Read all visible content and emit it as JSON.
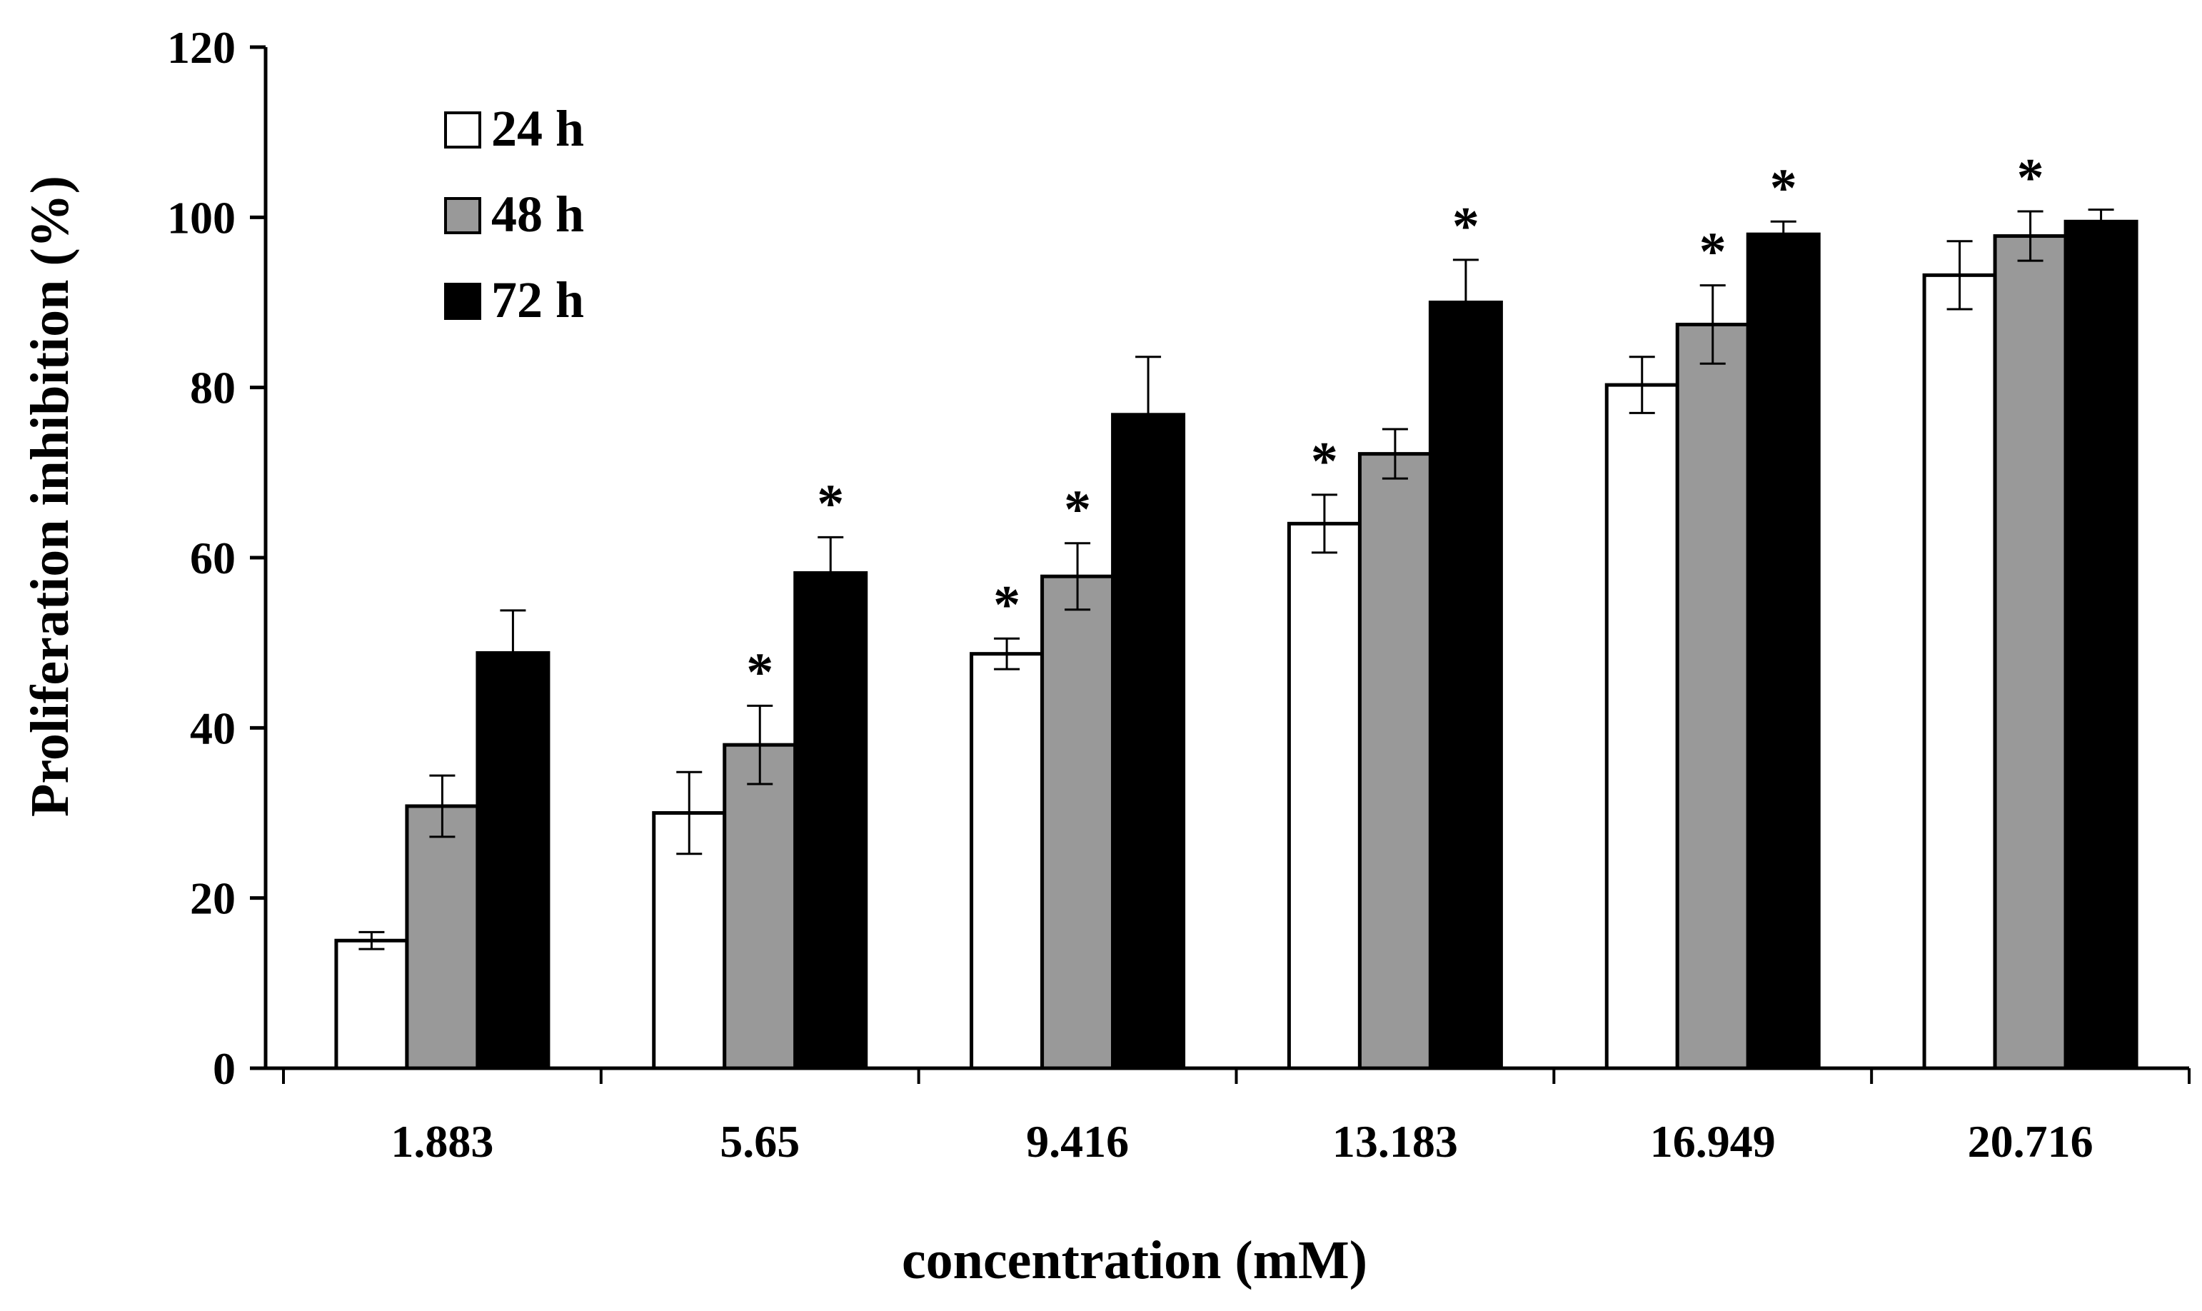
{
  "chart_data": {
    "type": "bar",
    "title": "",
    "xlabel": "concentration (mM)",
    "ylabel": "Proliferation inhibition (%)",
    "ylim": [
      0,
      120
    ],
    "yticks": [
      "0",
      "20",
      "40",
      "60",
      "80",
      "100",
      "120"
    ],
    "categories": [
      "1.883",
      "5.65",
      "9.416",
      "13.183",
      "16.949",
      "20.716"
    ],
    "legend_position": "top-left",
    "series": [
      {
        "name": "24 h",
        "color": "#ffffff",
        "values": [
          15,
          30,
          48.7,
          64,
          80.3,
          93.2
        ],
        "errors": [
          1,
          4.8,
          1.8,
          3.4,
          3.3,
          4
        ],
        "significant": [
          false,
          false,
          true,
          true,
          false,
          false
        ]
      },
      {
        "name": "48 h",
        "color": "#999999",
        "values": [
          30.8,
          38,
          57.8,
          72.2,
          87.4,
          97.8
        ],
        "errors": [
          3.6,
          4.6,
          3.9,
          2.9,
          4.6,
          2.9
        ],
        "significant": [
          false,
          true,
          true,
          false,
          true,
          true
        ]
      },
      {
        "name": "72 h",
        "color": "#000000",
        "values": [
          48.8,
          58.2,
          76.8,
          90,
          98,
          99.5
        ],
        "errors": [
          5,
          4.2,
          6.8,
          5,
          1.5,
          1.4
        ],
        "significant": [
          false,
          true,
          false,
          true,
          true,
          false
        ]
      }
    ],
    "significance_marker": "*"
  }
}
